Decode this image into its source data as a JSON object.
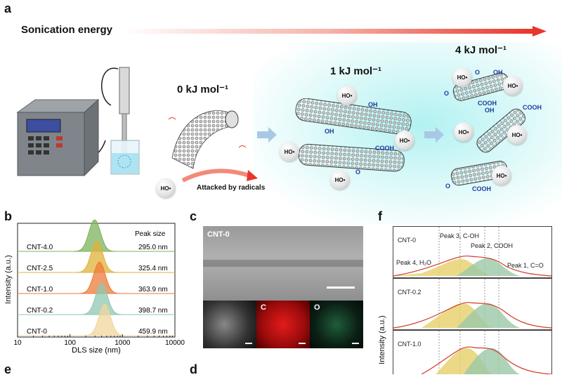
{
  "panel_a": {
    "letter": "a",
    "energy_label": "Sonication energy",
    "energies": [
      "0 kJ mol⁻¹",
      "1 kJ mol⁻¹",
      "4 kJ mol⁻¹"
    ],
    "attack_label": "Attacked by radicals",
    "radical": "HO•",
    "groups": {
      "oh": "OH",
      "o": "O",
      "cooh": "COOH"
    },
    "colors": {
      "accent": "#e8362b",
      "halo": "#b8f0f0",
      "groups": "#1f3b9e"
    }
  },
  "panel_b": {
    "letter": "b",
    "peak_header": "Peak size"
  },
  "panel_c": {
    "letter": "c",
    "title": "CNT-0",
    "maps": [
      "C",
      "O"
    ]
  },
  "panel_f": {
    "letter": "f",
    "ylabel": "Intensity (a.u.)",
    "boxes": [
      {
        "name": "CNT-0",
        "peaks": [
          "Peak 3, C-OH",
          "Peak 2, COOH",
          "Peak 4, H₂O",
          "Peak 1, C=O"
        ]
      },
      {
        "name": "CNT-0.2"
      },
      {
        "name": "CNT-1.0"
      }
    ]
  },
  "bottom_letters": [
    "e",
    "d"
  ],
  "chart_data": {
    "type": "area",
    "xlabel": "DLS size (nm)",
    "ylabel": "Intensity (a.u.)",
    "x_scale": "log",
    "xlim": [
      10,
      10000
    ],
    "x_ticks": [
      "10",
      "100",
      "1000",
      "10000"
    ],
    "series": [
      {
        "name": "CNT-4.0",
        "peak_nm": 295.0,
        "peak_label": "295.0 nm",
        "color": "#7cb35c"
      },
      {
        "name": "CNT-2.5",
        "peak_nm": 325.4,
        "peak_label": "325.4 nm",
        "color": "#e0b23a"
      },
      {
        "name": "CNT-1.0",
        "peak_nm": 363.9,
        "peak_label": "363.9 nm",
        "color": "#ee7a3a"
      },
      {
        "name": "CNT-0.2",
        "peak_nm": 398.7,
        "peak_label": "398.7 nm",
        "color": "#8fc7b1"
      },
      {
        "name": "CNT-0",
        "peak_nm": 459.9,
        "peak_label": "459.9 nm",
        "color": "#efd59b"
      }
    ]
  }
}
